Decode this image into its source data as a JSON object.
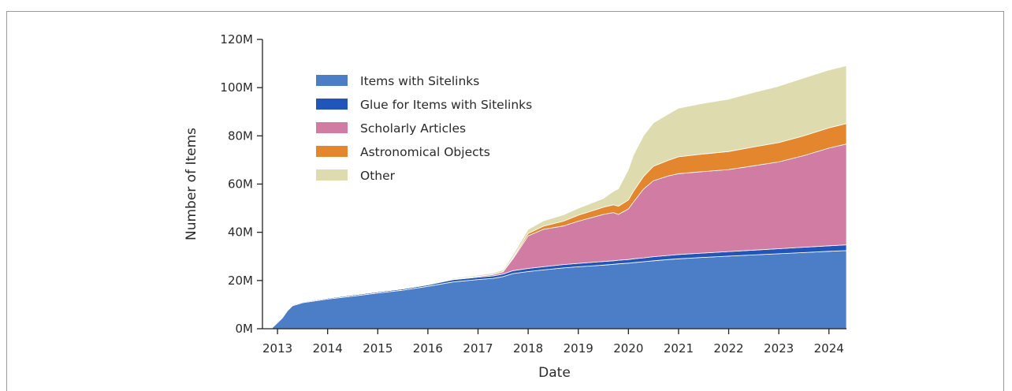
{
  "chart_data": {
    "type": "area",
    "stacked": true,
    "xlabel": "Date",
    "ylabel": "Number of Items",
    "x_ticks": [
      "2013",
      "2014",
      "2015",
      "2016",
      "2017",
      "2018",
      "2019",
      "2020",
      "2021",
      "2022",
      "2023",
      "2024"
    ],
    "y_ticks": [
      "0M",
      "20M",
      "40M",
      "60M",
      "80M",
      "100M",
      "120M"
    ],
    "ylim": [
      0,
      120
    ],
    "xlim": [
      2012.7,
      2024.35
    ],
    "y_unit": "millions",
    "legend_position": "upper-left",
    "grid": false,
    "x": [
      2012.9,
      2013.0,
      2013.1,
      2013.2,
      2013.3,
      2013.5,
      2014.0,
      2014.5,
      2015.0,
      2015.5,
      2016.0,
      2016.5,
      2017.0,
      2017.3,
      2017.5,
      2017.7,
      2018.0,
      2018.3,
      2018.7,
      2019.0,
      2019.5,
      2019.7,
      2019.8,
      2020.0,
      2020.1,
      2020.3,
      2020.5,
      2020.8,
      2021.0,
      2021.5,
      2022.0,
      2022.5,
      2023.0,
      2023.5,
      2024.0,
      2024.35
    ],
    "series": [
      {
        "name": "Items with Sitelinks",
        "color": "#4c7ec8",
        "values": [
          0.5,
          2.5,
          4.5,
          7.5,
          9.5,
          10.8,
          12.3,
          13.5,
          14.8,
          16.0,
          17.6,
          19.4,
          20.4,
          20.9,
          21.6,
          22.9,
          23.7,
          24.4,
          25.2,
          25.7,
          26.4,
          26.7,
          26.9,
          27.2,
          27.4,
          27.8,
          28.2,
          28.7,
          29.0,
          29.6,
          30.1,
          30.6,
          31.1,
          31.6,
          32.1,
          32.4
        ]
      },
      {
        "name": "Glue for Items with Sitelinks",
        "color": "#2155b9",
        "values": [
          0.05,
          0.1,
          0.15,
          0.2,
          0.25,
          0.3,
          0.4,
          0.5,
          0.5,
          0.5,
          0.6,
          0.9,
          1.0,
          1.0,
          1.1,
          1.2,
          1.3,
          1.3,
          1.4,
          1.4,
          1.5,
          1.5,
          1.5,
          1.5,
          1.6,
          1.6,
          1.7,
          1.7,
          1.8,
          1.8,
          1.9,
          2.0,
          2.1,
          2.2,
          2.3,
          2.4
        ]
      },
      {
        "name": "Scholarly Articles",
        "color": "#d17da3",
        "values": [
          0,
          0,
          0,
          0,
          0,
          0,
          0,
          0,
          0,
          0,
          0,
          0.2,
          0.3,
          0.6,
          0.9,
          5.0,
          13.5,
          15.5,
          16.0,
          17.5,
          19.5,
          20.0,
          19.0,
          21.0,
          23.5,
          28.5,
          31.5,
          33.0,
          33.5,
          33.8,
          34.0,
          35.0,
          36.0,
          38.0,
          40.5,
          41.8
        ]
      },
      {
        "name": "Astronomical Objects",
        "color": "#e3862d",
        "values": [
          0,
          0,
          0,
          0,
          0,
          0,
          0,
          0,
          0,
          0,
          0,
          0,
          0,
          0,
          0,
          0.5,
          1.0,
          1.3,
          2.0,
          2.5,
          3.0,
          3.2,
          3.4,
          3.7,
          4.5,
          5.2,
          6.0,
          6.5,
          7.0,
          7.3,
          7.5,
          7.8,
          8.0,
          8.2,
          8.4,
          8.5
        ]
      },
      {
        "name": "Other",
        "color": "#dedcae",
        "values": [
          0,
          0,
          0,
          0,
          0,
          0,
          0,
          0,
          0,
          0,
          0,
          0.4,
          0.5,
          0.6,
          0.8,
          1.1,
          1.7,
          2.2,
          2.6,
          2.9,
          3.6,
          5.6,
          7.2,
          12.6,
          15.0,
          16.9,
          18.0,
          19.2,
          20.2,
          21.0,
          21.7,
          22.6,
          23.4,
          24.0,
          24.0,
          24.0
        ]
      }
    ]
  }
}
